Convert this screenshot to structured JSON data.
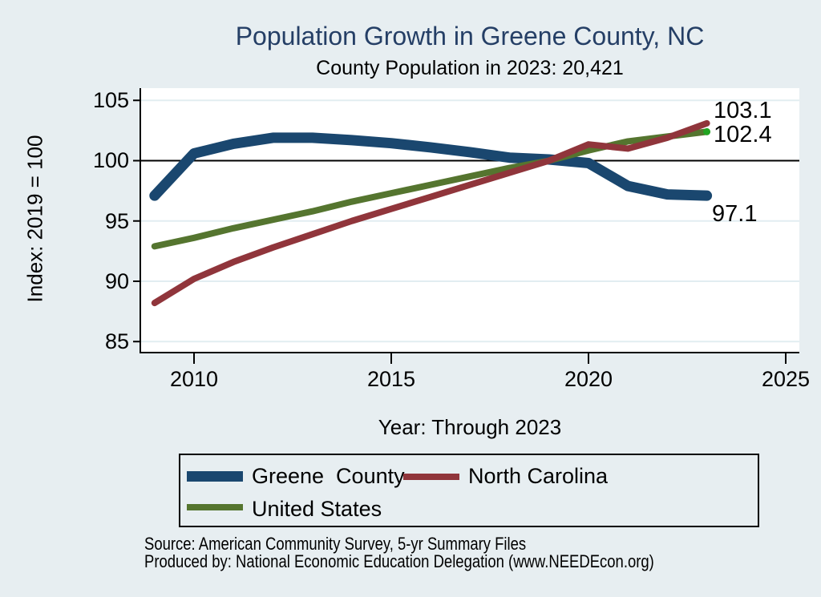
{
  "header": {
    "title": "Population Growth in Greene County, NC",
    "subtitle": "County Population in 2023: 20,421"
  },
  "y_axis": {
    "title": "Index: 2019 = 100",
    "ticks": [
      "105",
      "100",
      "95",
      "90",
      "85"
    ]
  },
  "x_axis": {
    "title": "Year: Through 2023",
    "ticks": [
      "2010",
      "2015",
      "2020",
      "2025"
    ]
  },
  "end_labels": {
    "north_carolina": "103.1",
    "united_states": "102.4",
    "greene_county": "97.1"
  },
  "legend": {
    "items": [
      {
        "label": "Greene  County"
      },
      {
        "label": "North Carolina"
      },
      {
        "label": "United States"
      }
    ]
  },
  "footer": {
    "lines": [
      "Source: American Community Survey, 5-yr Summary Files",
      "Produced by: National Economic Education Delegation (www.NEEDEcon.org)"
    ]
  },
  "colors": {
    "greene_county": "#1a476f",
    "north_carolina": "#90353b",
    "united_states": "#55752f",
    "endpoint_marker": "#21a421",
    "title_text": "#253f66",
    "background": "#e7eef1",
    "plot_background": "#ffffff",
    "gridline": "#e2edf1",
    "axis": "#000000"
  },
  "chart_data": {
    "type": "line",
    "title": "Population Growth in Greene County, NC",
    "subtitle": "County Population in 2023: 20,421",
    "xlabel": "Year: Through 2023",
    "ylabel": "Index: 2019 = 100",
    "x": [
      2009,
      2010,
      2011,
      2012,
      2013,
      2014,
      2015,
      2016,
      2017,
      2018,
      2019,
      2020,
      2021,
      2022,
      2023
    ],
    "series": [
      {
        "name": "Greene County",
        "color": "#1a476f",
        "width": 13,
        "z": 0,
        "end_label": "97.1",
        "values": [
          97.1,
          100.6,
          101.4,
          101.9,
          101.9,
          101.7,
          101.45,
          101.1,
          100.7,
          100.25,
          100.1,
          99.8,
          97.9,
          97.2,
          97.1
        ]
      },
      {
        "name": "North Carolina",
        "color": "#90353b",
        "width": 8,
        "z": 2,
        "end_label": "103.1",
        "values": [
          88.2,
          90.2,
          91.6,
          92.8,
          93.9,
          95.0,
          96.0,
          97.0,
          98.0,
          99.0,
          100.0,
          101.35,
          101.0,
          101.9,
          103.1
        ]
      },
      {
        "name": "United States",
        "color": "#55752f",
        "width": 8,
        "z": 1,
        "end_label": "102.4",
        "last_point_marker": true,
        "values": [
          92.9,
          93.6,
          94.4,
          95.1,
          95.8,
          96.6,
          97.3,
          98.0,
          98.7,
          99.4,
          100.0,
          100.85,
          101.6,
          102.0,
          102.4
        ]
      }
    ],
    "xlim": [
      2008.6,
      2025.3
    ],
    "ylim": [
      84,
      106
    ],
    "reference_line": 100,
    "grid": "horizontal",
    "legend_position": "bottom"
  }
}
